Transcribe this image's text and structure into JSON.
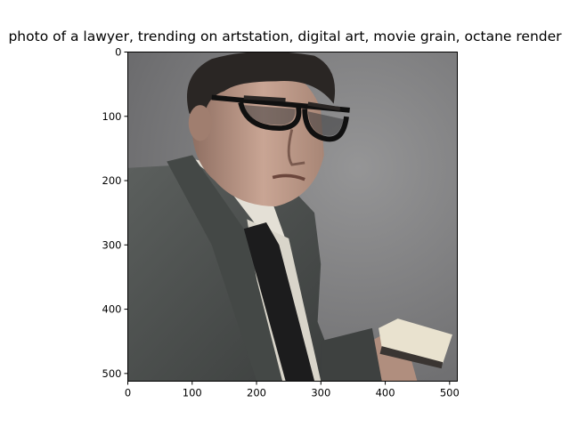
{
  "figure": {
    "title": "photo of a lawyer,  trending on artstation, digital art, movie grain, octane render"
  },
  "image": {
    "subject": "man in glasses, dark suit and black tie holding a book",
    "colors": {
      "background": "#8a8a8c",
      "suit": "#4e5250",
      "skin": "#b99886",
      "hair": "#2a2624",
      "shirt": "#e4e0d6",
      "tie": "#1c1c1d",
      "book": "#e9e2cf"
    }
  },
  "axes": {
    "x_ticks": [
      "0",
      "100",
      "200",
      "300",
      "400",
      "500"
    ],
    "y_ticks": [
      "0",
      "100",
      "200",
      "300",
      "400",
      "500"
    ],
    "x_range": [
      0,
      512
    ],
    "y_range": [
      0,
      512
    ]
  }
}
